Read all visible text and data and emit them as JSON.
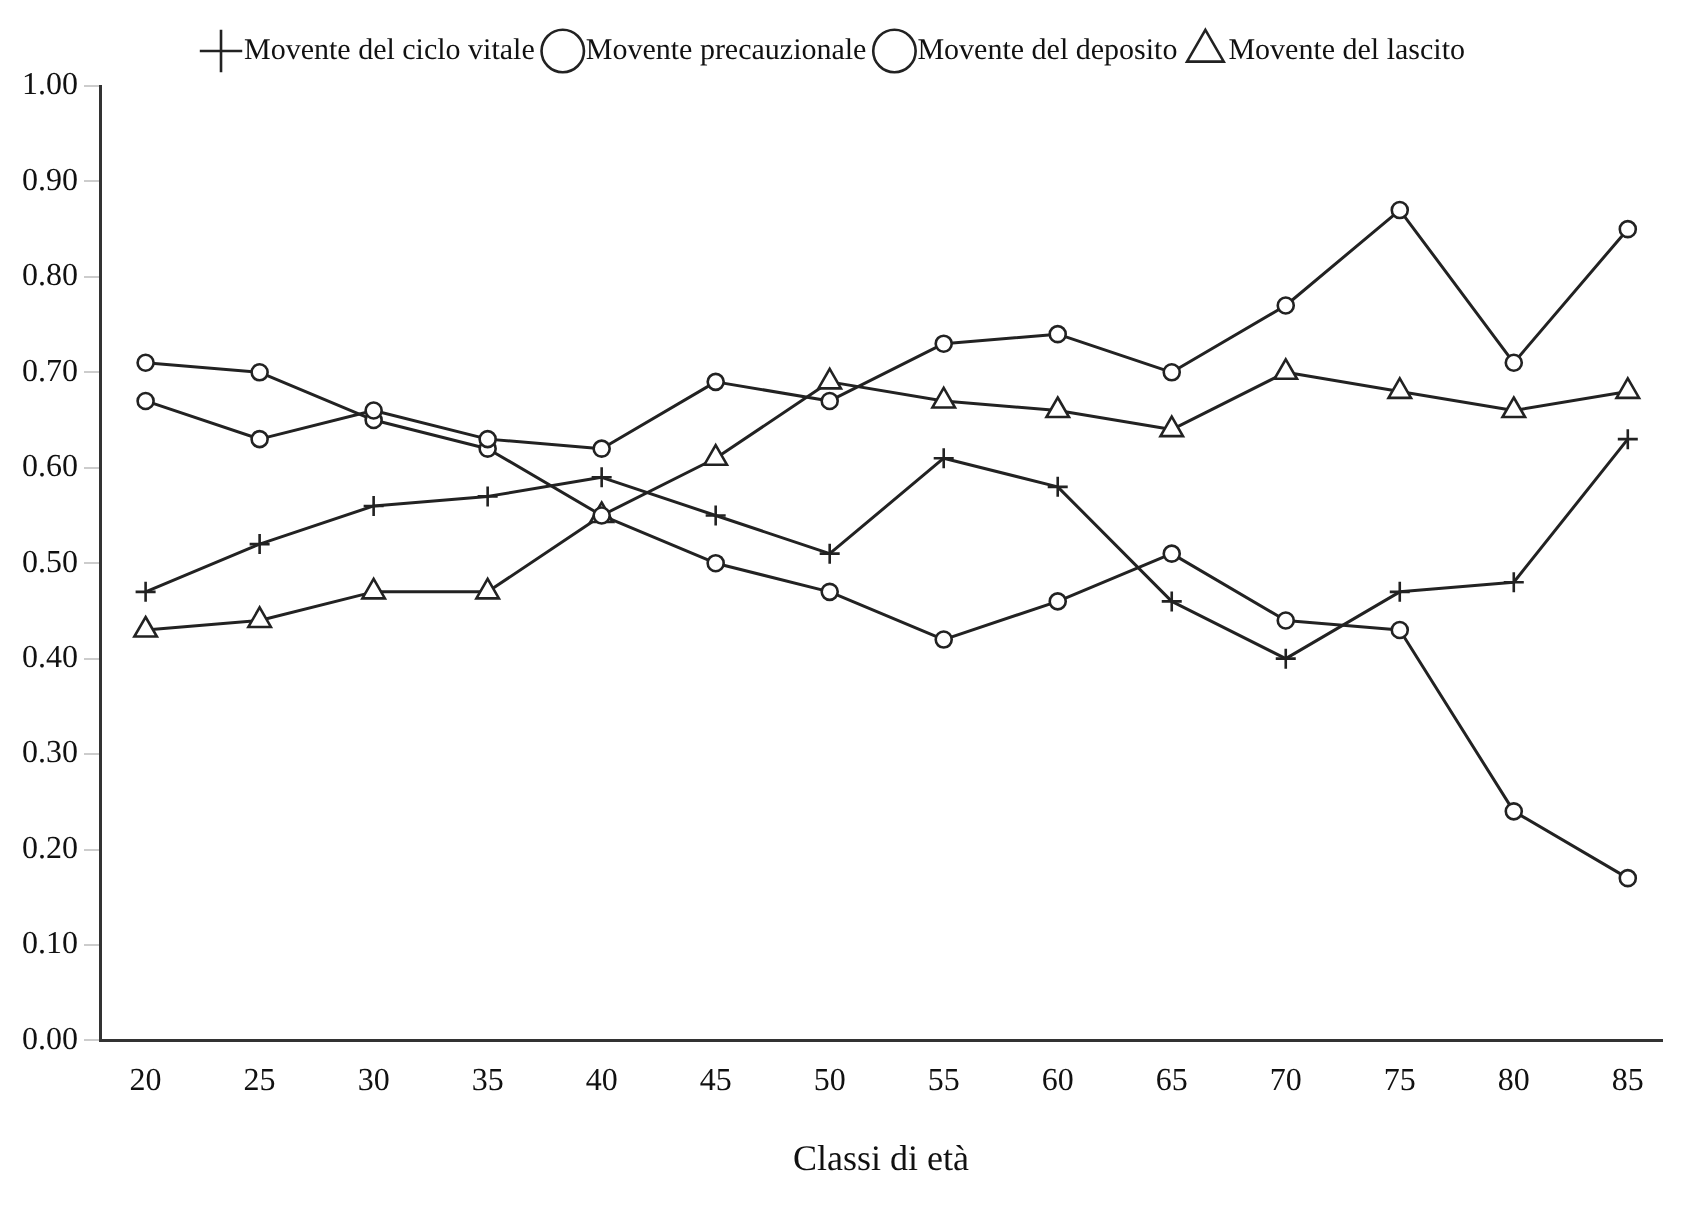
{
  "chart_data": {
    "type": "line",
    "xlabel": "Classi di età",
    "x": [
      20,
      25,
      30,
      35,
      40,
      45,
      50,
      55,
      60,
      65,
      70,
      75,
      80,
      85
    ],
    "xlim": [
      18,
      86.5
    ],
    "xticks": [
      20,
      25,
      30,
      35,
      40,
      45,
      50,
      55,
      60,
      65,
      70,
      75,
      80,
      85
    ],
    "ylim": [
      0,
      1
    ],
    "yticks": [
      {
        "value": 0,
        "label": "0.00"
      },
      {
        "value": 0.1,
        "label": "0.10"
      },
      {
        "value": 0.2,
        "label": "0.20"
      },
      {
        "value": 0.3,
        "label": "0.30"
      },
      {
        "value": 0.4,
        "label": "0.40"
      },
      {
        "value": 0.5,
        "label": "0.50"
      },
      {
        "value": 0.6,
        "label": "0.60"
      },
      {
        "value": 0.7,
        "label": "0.70"
      },
      {
        "value": 0.8,
        "label": "0.80"
      },
      {
        "value": 0.9,
        "label": "0.90"
      },
      {
        "value": 1,
        "label": "1.00"
      }
    ],
    "grid": false,
    "legend": "top",
    "line_style": "solid",
    "series": [
      {
        "name": "Movente del ciclo vitale",
        "color": "#222222",
        "marker": "cross",
        "values": [
          0.47,
          0.52,
          0.56,
          0.57,
          0.59,
          0.55,
          0.51,
          0.61,
          0.58,
          0.46,
          0.4,
          0.47,
          0.48,
          0.63
        ]
      },
      {
        "name": "Movente precauzionale",
        "color": "#222222",
        "marker": "circle",
        "values": [
          0.67,
          0.63,
          0.66,
          0.63,
          0.62,
          0.69,
          0.67,
          0.73,
          0.74,
          0.7,
          0.77,
          0.87,
          0.71,
          0.85
        ]
      },
      {
        "name": "Movente del deposito",
        "color": "#222222",
        "marker": "circle",
        "values": [
          0.71,
          0.7,
          0.65,
          0.62,
          0.55,
          0.5,
          0.47,
          0.42,
          0.46,
          0.51,
          0.44,
          0.43,
          0.24,
          0.17
        ]
      },
      {
        "name": "Movente del lascito",
        "color": "#222222",
        "marker": "triangle",
        "values": [
          0.43,
          0.44,
          0.47,
          0.47,
          0.55,
          0.61,
          0.69,
          0.67,
          0.66,
          0.64,
          0.7,
          0.68,
          0.66,
          0.68
        ]
      }
    ]
  }
}
